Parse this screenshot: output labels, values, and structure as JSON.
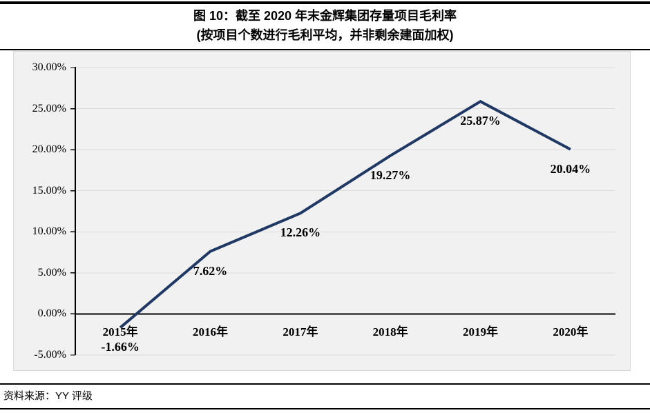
{
  "header": {
    "title": "图 10：截至 2020 年末金辉集团存量项目毛利率",
    "subtitle": "(按项目个数进行毛利平均，并非剩余建面加权)"
  },
  "footer": {
    "source": "资料来源：YY 评级"
  },
  "chart_data": {
    "type": "line",
    "title": "图 10：截至 2020 年末金辉集团存量项目毛利率",
    "subtitle": "(按项目个数进行毛利平均，并非剩余建面加权)",
    "categories": [
      "2015年",
      "2016年",
      "2017年",
      "2018年",
      "2019年",
      "2020年"
    ],
    "values": [
      -1.66,
      7.62,
      12.26,
      19.27,
      25.87,
      20.04
    ],
    "data_labels": [
      "-1.66%",
      "7.62%",
      "12.26%",
      "19.27%",
      "25.87%",
      "20.04%"
    ],
    "series_name": "存量项目毛利率",
    "xlabel": "",
    "ylabel": "",
    "ylim": [
      -5,
      30
    ],
    "y_tick_step": 5,
    "y_ticks": [
      {
        "value": 30,
        "label": "30.00%"
      },
      {
        "value": 25,
        "label": "25.00%"
      },
      {
        "value": 20,
        "label": "20.00%"
      },
      {
        "value": 15,
        "label": "15.00%"
      },
      {
        "value": 10,
        "label": "10.00%"
      },
      {
        "value": 5,
        "label": "5.00%"
      },
      {
        "value": 0,
        "label": "0.00%"
      },
      {
        "value": -5,
        "label": "-5.00%"
      }
    ],
    "grid": true,
    "legend": "none",
    "markers": "none",
    "colors": {
      "line": "#1F3864",
      "gridline": "#DCDCDC",
      "axis": "#000000",
      "plot_bg": "#F1F1F1",
      "panel_border": "#D9D9D9",
      "text": "#000000"
    }
  }
}
